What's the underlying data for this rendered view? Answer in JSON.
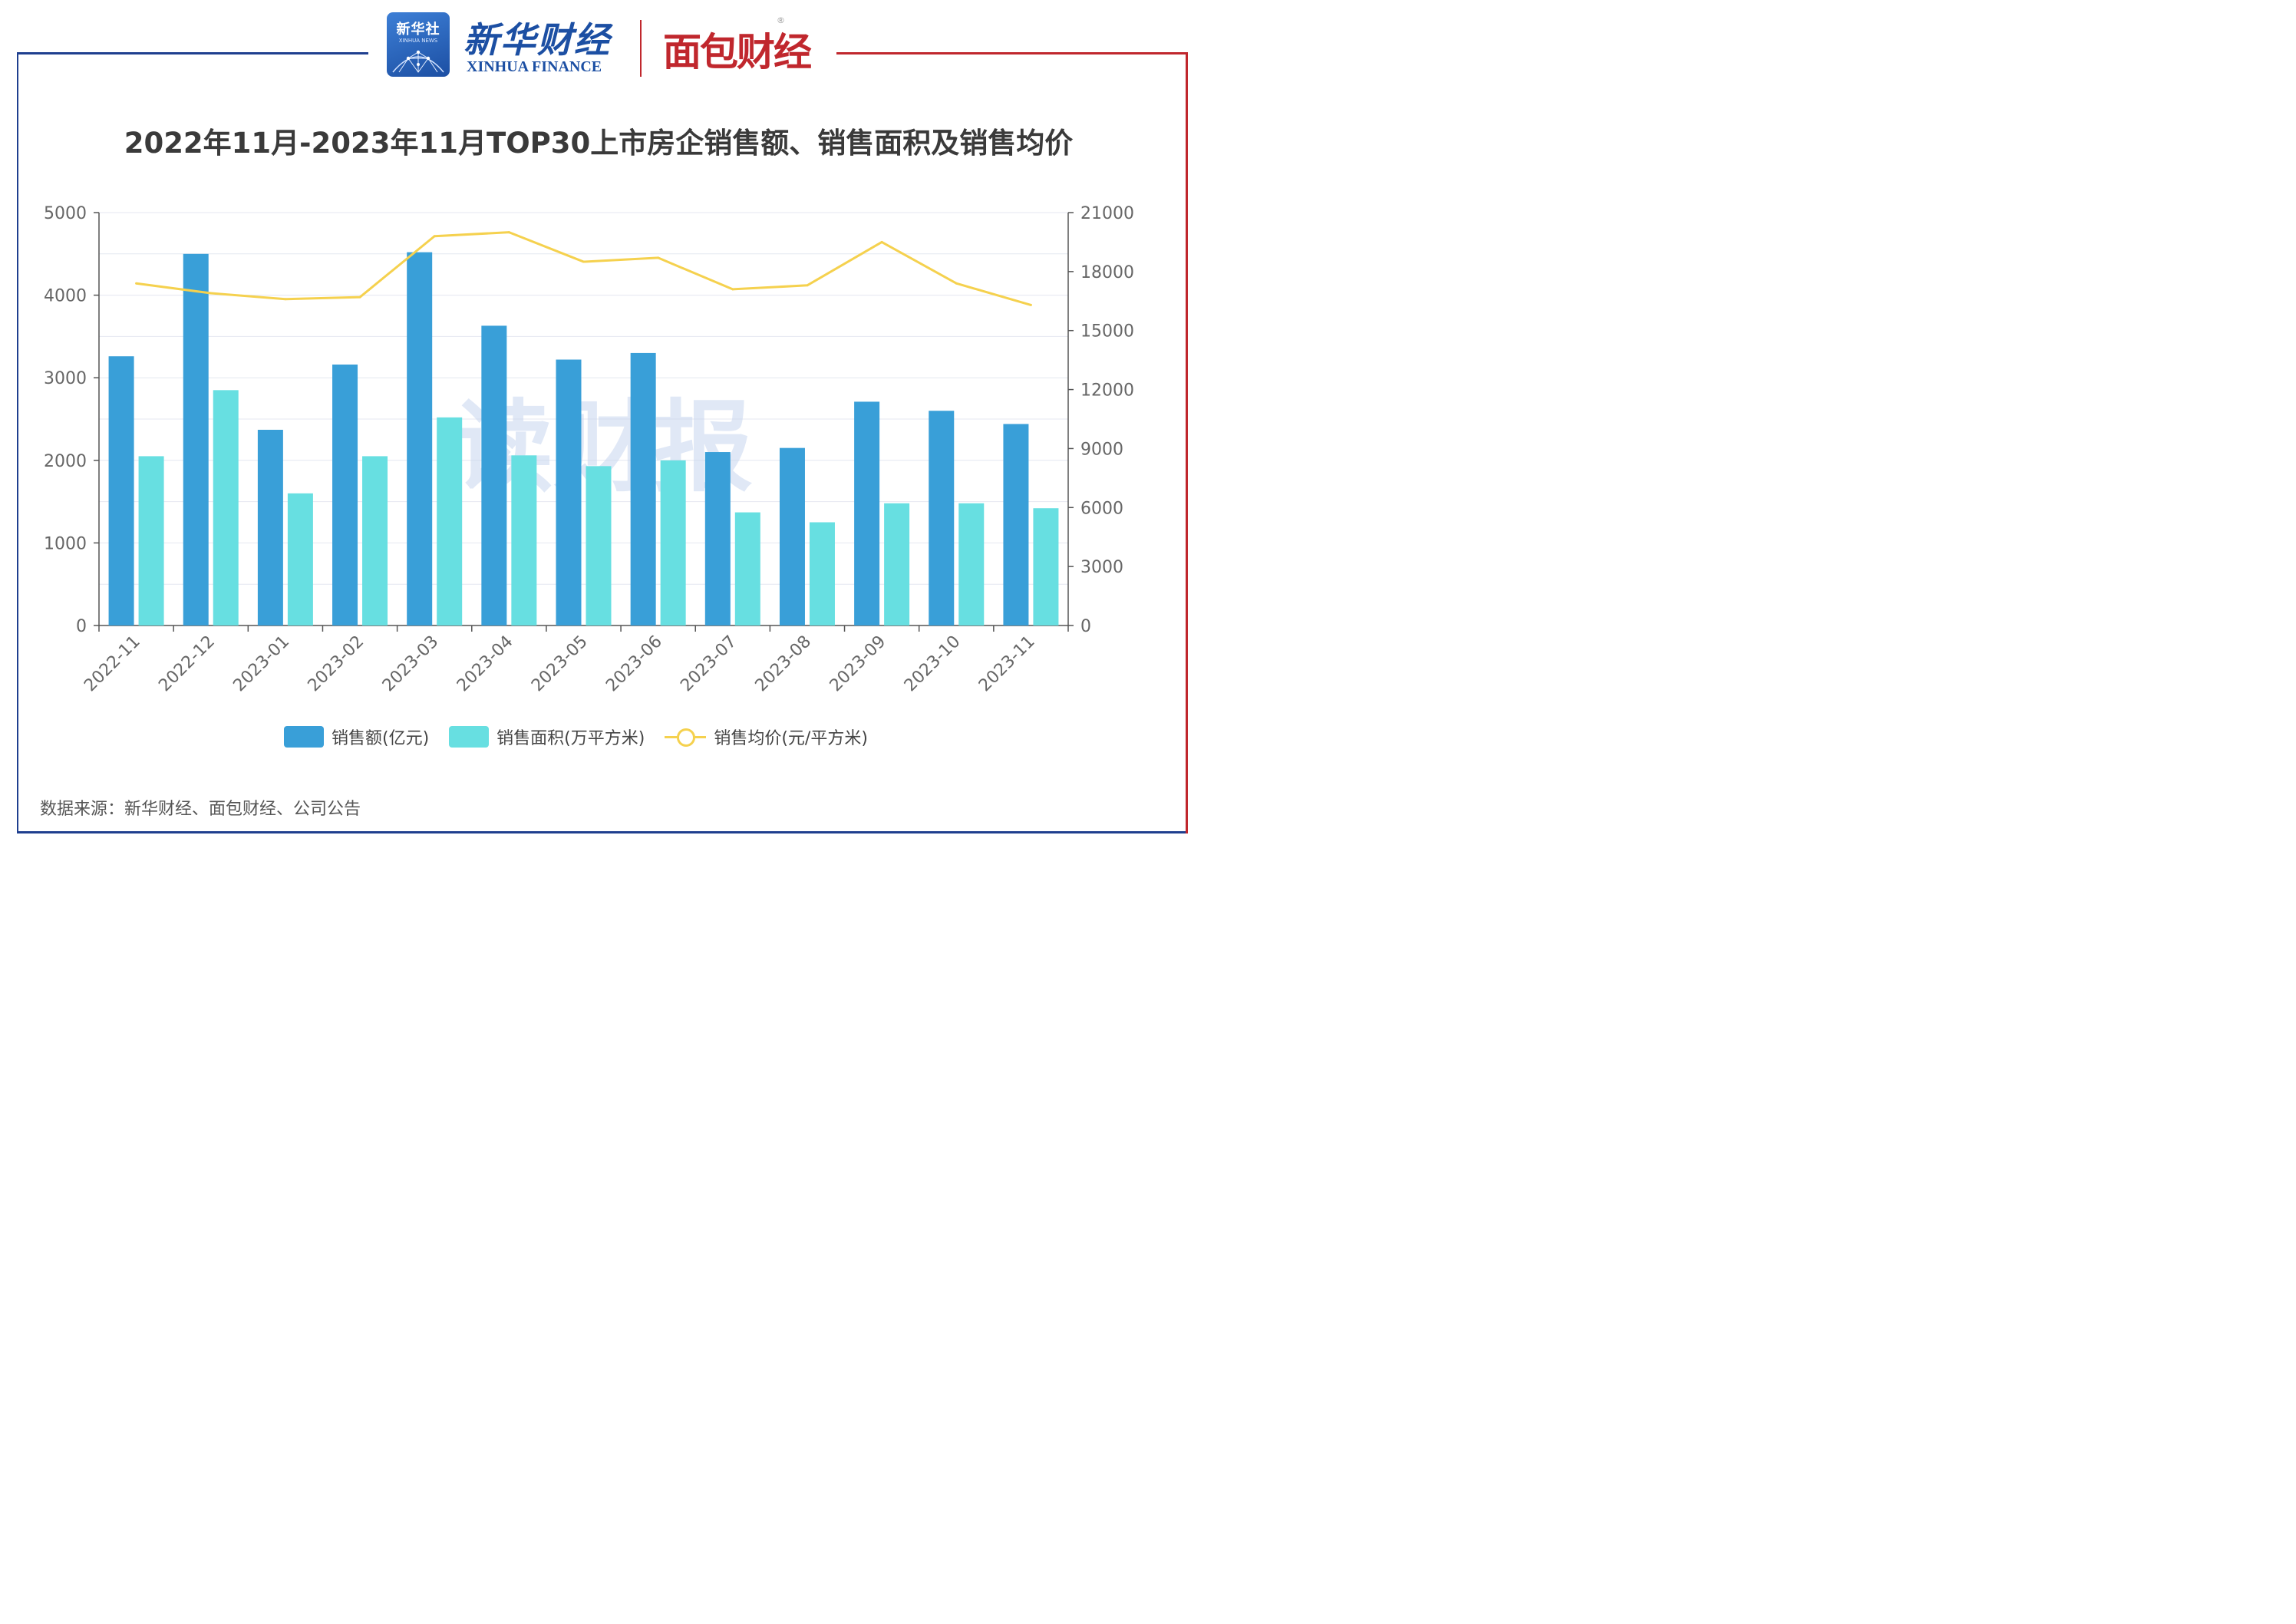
{
  "header": {
    "xinhua_badge": "新华社",
    "xinhua_badge_sub": "XINHUA NEWS",
    "xinhua_finance_cn": "新华财经",
    "xinhua_finance_en": "XINHUA FINANCE",
    "mianbao_logo": "面包财经",
    "registered_mark": "®"
  },
  "watermark": "读财报",
  "source": "数据来源：新华财经、面包财经、公司公告",
  "colors": {
    "sales_amount": "#399fd8",
    "sales_area": "#67dfe1",
    "avg_price": "#f5d14e",
    "frame_blue": "#1f3f8f",
    "frame_red": "#c0272d"
  },
  "chart_data": {
    "type": "bar",
    "title": "2022年11月-2023年11月TOP30上市房企销售额、销售面积及销售均价",
    "categories": [
      "2022-11",
      "2022-12",
      "2023-01",
      "2023-02",
      "2023-03",
      "2023-04",
      "2023-05",
      "2023-06",
      "2023-07",
      "2023-08",
      "2023-09",
      "2023-10",
      "2023-11"
    ],
    "series": [
      {
        "name": "销售额(亿元)",
        "type": "bar",
        "axis": "left",
        "values": [
          3260,
          4500,
          2370,
          3160,
          4520,
          3630,
          3220,
          3300,
          2100,
          2150,
          2710,
          2600,
          2440
        ]
      },
      {
        "name": "销售面积(万平方米)",
        "type": "bar",
        "axis": "left",
        "values": [
          2050,
          2850,
          1600,
          2050,
          2520,
          2060,
          1930,
          2000,
          1370,
          1250,
          1480,
          1480,
          1420
        ]
      },
      {
        "name": "销售均价(元/平方米)",
        "type": "line",
        "axis": "right",
        "values": [
          17400,
          16900,
          16600,
          16700,
          19800,
          20000,
          18500,
          18700,
          17100,
          17300,
          19500,
          17400,
          16300
        ]
      }
    ],
    "y_left": {
      "min": 0,
      "max": 5000,
      "ticks": [
        0,
        1000,
        2000,
        3000,
        4000,
        5000
      ]
    },
    "y_right": {
      "min": 0,
      "max": 21000,
      "ticks": [
        0,
        3000,
        6000,
        9000,
        12000,
        15000,
        18000,
        21000
      ]
    },
    "legend_position": "bottom",
    "grid": true
  }
}
